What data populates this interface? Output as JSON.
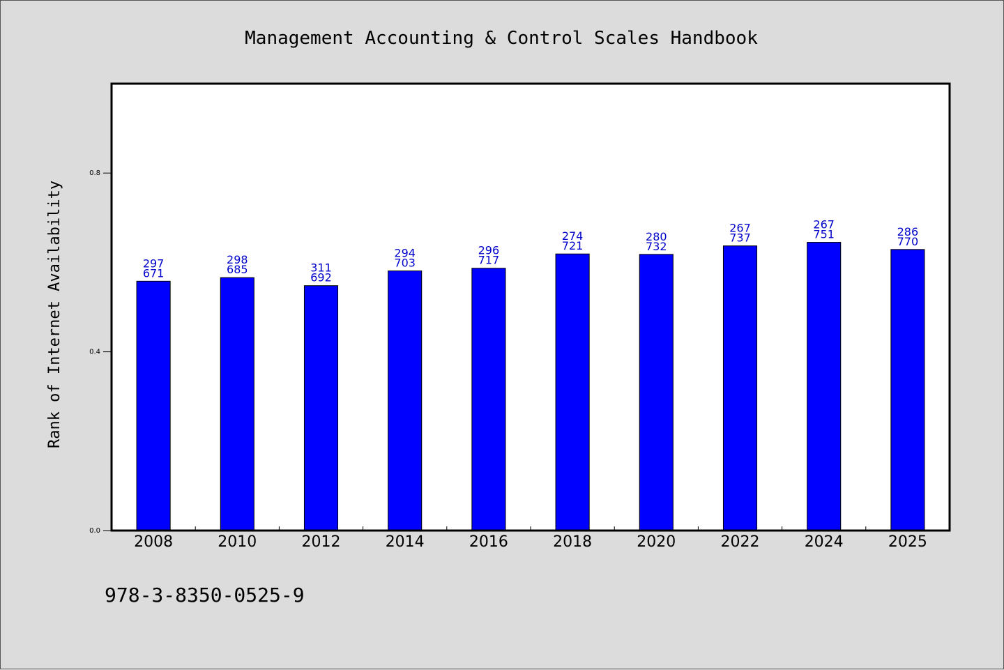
{
  "chart_data": {
    "type": "bar",
    "title": "Management Accounting & Control Scales Handbook",
    "xlabel": "",
    "ylabel": "Rank of Internet Availability",
    "categories": [
      "2008",
      "2010",
      "2012",
      "2014",
      "2016",
      "2018",
      "2020",
      "2022",
      "2024",
      "2025"
    ],
    "values": [
      0.558,
      0.566,
      0.548,
      0.581,
      0.587,
      0.619,
      0.618,
      0.637,
      0.645,
      0.629
    ],
    "bar_labels": [
      [
        "297",
        "671"
      ],
      [
        "298",
        "685"
      ],
      [
        "311",
        "692"
      ],
      [
        "294",
        "703"
      ],
      [
        "296",
        "717"
      ],
      [
        "274",
        "721"
      ],
      [
        "280",
        "732"
      ],
      [
        "267",
        "737"
      ],
      [
        "267",
        "751"
      ],
      [
        "286",
        "770"
      ]
    ],
    "ylim": [
      0,
      1.0
    ],
    "yticks": [
      0.0,
      0.4,
      0.8
    ],
    "ytick_labels": [
      "0.0",
      "0.4",
      "0.8"
    ],
    "grid": false,
    "bar_color": "#0000ff",
    "label_color": "#0000cc",
    "plot_background": "#ffffff",
    "page_background": "#dcdcdc"
  },
  "footer": {
    "isbn": "978-3-8350-0525-9"
  }
}
